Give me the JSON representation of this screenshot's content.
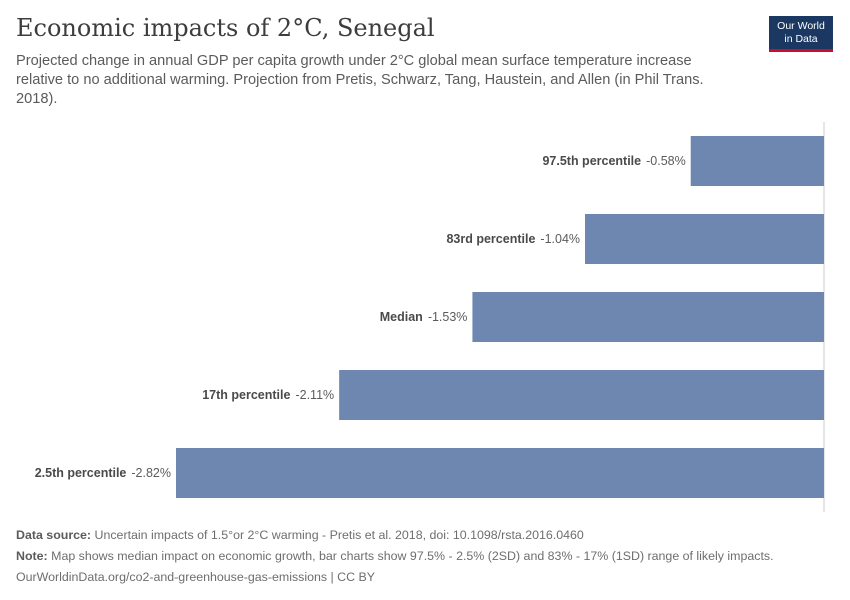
{
  "header": {
    "title": "Economic impacts of 2°C, Senegal",
    "subtitle": "Projected change in annual GDP per capita growth under 2°C global mean surface temperature increase relative to no additional warming. Projection from Pretis, Schwarz, Tang, Haustein, and Allen (in Phil Trans. 2018).",
    "logo_line1": "Our World",
    "logo_line2": "in Data"
  },
  "chart_data": {
    "type": "bar",
    "orientation": "horizontal",
    "categories": [
      "97.5th percentile",
      "83rd percentile",
      "Median",
      "17th percentile",
      "2.5th percentile"
    ],
    "values": [
      -0.58,
      -1.04,
      -1.53,
      -2.11,
      -2.82
    ],
    "value_labels": [
      "-0.58%",
      "-1.04%",
      "-1.53%",
      "-2.11%",
      "-2.82%"
    ],
    "unit": "%",
    "xlim": [
      -2.82,
      0
    ],
    "color": "#6d87b0",
    "zero_line_color": "#cccccc"
  },
  "footer": {
    "source_label": "Data source:",
    "source_text": "Uncertain impacts of 1.5°or 2°C warming - Pretis et al. 2018, doi: 10.1098/rsta.2016.0460",
    "note_label": "Note:",
    "note_text": "Map shows median impact on economic growth, bar charts show 97.5% - 2.5% (2SD) and 83% - 17% (1SD) range of likely impacts.",
    "url": "OurWorldinData.org/co2-and-greenhouse-gas-emissions | CC BY"
  }
}
